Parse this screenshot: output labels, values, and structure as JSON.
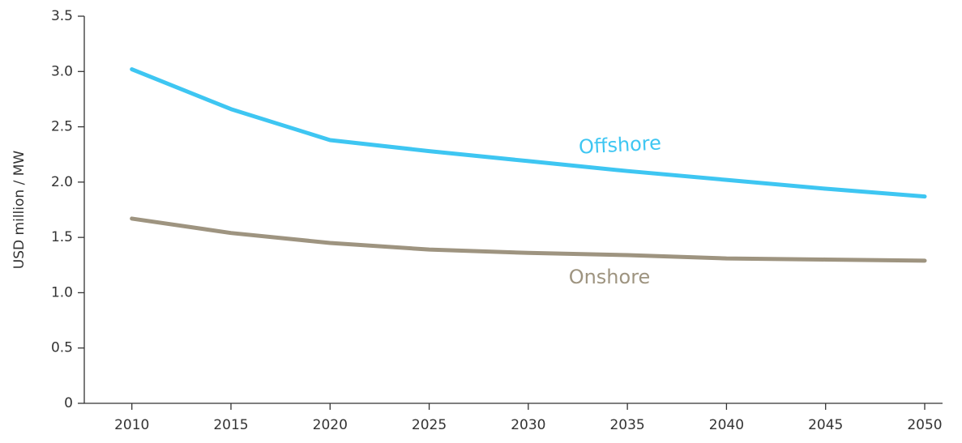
{
  "chart_data": {
    "type": "line",
    "y_label": "USD million / MW",
    "x": [
      2010,
      2015,
      2020,
      2025,
      2030,
      2035,
      2040,
      2045,
      2050
    ],
    "series": [
      {
        "name": "Offshore",
        "color": "#3ec6f2",
        "values": [
          3.02,
          2.66,
          2.38,
          2.28,
          2.19,
          2.1,
          2.02,
          1.94,
          1.87
        ]
      },
      {
        "name": "Onshore",
        "color": "#9e9480",
        "values": [
          1.67,
          1.54,
          1.45,
          1.39,
          1.36,
          1.34,
          1.31,
          1.3,
          1.29
        ]
      }
    ],
    "xlim": [
      2007.6,
      2050.9
    ],
    "ylim": [
      0,
      3.5
    ],
    "xticks": [
      2010,
      2015,
      2020,
      2025,
      2030,
      2035,
      2040,
      2045,
      2050
    ],
    "yticks": [
      0,
      0.5,
      {
        "value": 1,
        "label": "1.0"
      },
      1.5,
      {
        "value": 2,
        "label": "2.0"
      },
      2.5,
      {
        "value": 3,
        "label": "3.0"
      },
      3.5
    ],
    "grid": false
  }
}
